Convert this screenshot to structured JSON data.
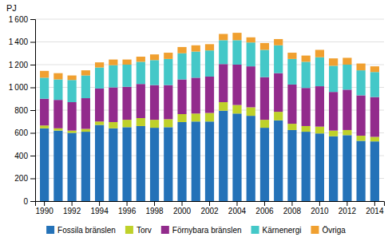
{
  "chart_data": {
    "type": "bar",
    "stacked": true,
    "ylabel": "PJ",
    "categories": [
      "1990",
      null,
      "1992",
      null,
      "1994",
      null,
      "1996",
      null,
      "1998",
      null,
      "2000",
      null,
      "2002",
      null,
      "2004",
      null,
      "2006",
      null,
      "2008",
      null,
      "2010",
      null,
      "2012",
      null,
      "2014"
    ],
    "series": [
      {
        "name": "Fossila bränslen",
        "color": "#2472b8",
        "values": [
          640,
          620,
          600,
          610,
          670,
          640,
          650,
          660,
          645,
          650,
          695,
          700,
          700,
          795,
          770,
          750,
          645,
          710,
          625,
          610,
          595,
          570,
          580,
          530,
          525
        ]
      },
      {
        "name": "Torv",
        "color": "#bfd12a",
        "values": [
          25,
          20,
          20,
          25,
          30,
          55,
          65,
          70,
          70,
          70,
          70,
          70,
          75,
          75,
          75,
          75,
          70,
          75,
          55,
          50,
          60,
          50,
          45,
          45,
          40
        ]
      },
      {
        "name": "Förnybara bränslen",
        "color": "#922b8c",
        "values": [
          235,
          250,
          250,
          270,
          290,
          305,
          290,
          300,
          305,
          300,
          305,
          315,
          320,
          335,
          355,
          360,
          375,
          340,
          345,
          335,
          355,
          340,
          355,
          355,
          350
        ]
      },
      {
        "name": "Kärnenergi",
        "color": "#44c8c8",
        "values": [
          185,
          180,
          195,
          200,
          185,
          195,
          195,
          195,
          220,
          230,
          230,
          230,
          230,
          210,
          215,
          210,
          240,
          245,
          225,
          230,
          255,
          230,
          220,
          220,
          220
        ]
      },
      {
        "name": "Övriga",
        "color": "#f0a030",
        "values": [
          60,
          55,
          40,
          45,
          45,
          50,
          45,
          45,
          50,
          55,
          55,
          55,
          55,
          55,
          65,
          45,
          60,
          55,
          55,
          55,
          65,
          65,
          60,
          60,
          50
        ]
      }
    ],
    "ylim": [
      0,
      1600
    ],
    "yticks": [
      0,
      200,
      400,
      600,
      800,
      {
        "value": 1000,
        "label": "1 000"
      },
      {
        "value": 1200,
        "label": "1 200"
      },
      {
        "value": 1400,
        "label": "1 400"
      },
      {
        "value": 1600,
        "label": "1 600"
      }
    ],
    "grid": true,
    "legend": "bottom"
  }
}
